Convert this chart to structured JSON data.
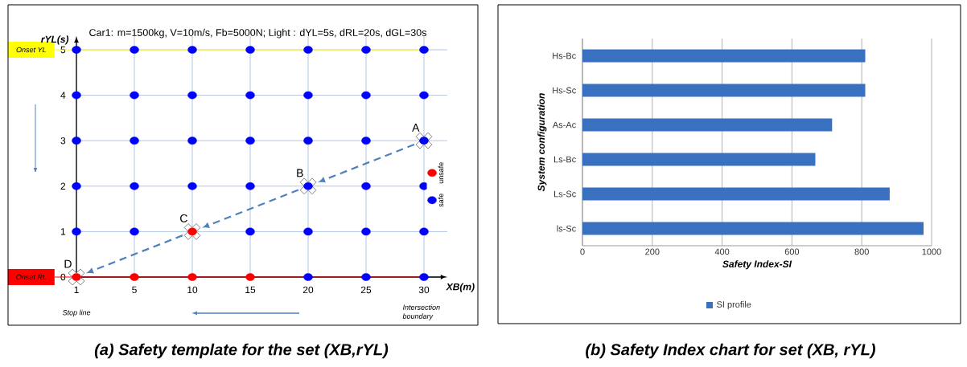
{
  "chart_data": [
    {
      "type": "scatter",
      "title": "(a) Safety template for the set (XB,rYL)",
      "subtitle": "Car1: m=1500kg, V=10m/s, Fb=5000N; Light : dYL=5s, dRL=20s, dGL=30s",
      "xlabel": "XB(m)",
      "ylabel": "rYL(s)",
      "categories": [
        "1",
        "5",
        "10",
        "15",
        "20",
        "25",
        "30"
      ],
      "ylim": [
        0,
        5.3
      ],
      "yticks": [
        0,
        1,
        2,
        3,
        4,
        5
      ],
      "grid": true,
      "marker": "circle",
      "legend": "right",
      "series": [
        {
          "name": "unsafe",
          "color": "#ff0000",
          "x": [
            "1",
            "5",
            "10",
            "15",
            "10"
          ],
          "values": [
            0,
            0,
            0,
            0,
            1
          ]
        },
        {
          "name": "safe",
          "color": "#0000ff",
          "x": [
            "1",
            "5",
            "10",
            "15",
            "20",
            "25",
            "30",
            "1",
            "5",
            "10",
            "15",
            "20",
            "25",
            "30",
            "1",
            "5",
            "10",
            "15",
            "20",
            "25",
            "30",
            "1",
            "5",
            "10",
            "15",
            "20",
            "25",
            "30",
            "1",
            "5",
            "15",
            "20",
            "25",
            "30",
            "20",
            "25",
            "30"
          ],
          "values": [
            5,
            5,
            5,
            5,
            5,
            5,
            5,
            4,
            4,
            4,
            4,
            4,
            4,
            4,
            3,
            3,
            3,
            3,
            3,
            3,
            3,
            2,
            2,
            2,
            2,
            2,
            2,
            2,
            1,
            1,
            1,
            1,
            1,
            1,
            0,
            0,
            0
          ]
        }
      ],
      "ref_lines": [
        {
          "axis": "y",
          "value": 5,
          "label": "Onset YL",
          "color": "#ffff00"
        },
        {
          "axis": "y",
          "value": 0,
          "label": "Onset RL",
          "color": "#ff0000"
        }
      ],
      "annotations": [
        {
          "text": "A",
          "x": "30",
          "y": 3
        },
        {
          "text": "B",
          "x": "20",
          "y": 2
        },
        {
          "text": "C",
          "x": "10",
          "y": 1
        },
        {
          "text": "D",
          "x": "1",
          "y": 0
        },
        "Stop line",
        "Intersection boundary"
      ]
    },
    {
      "type": "bar",
      "orientation": "horizontal",
      "title": "(b) Safety Index chart for set (XB, rYL)",
      "xlabel": "Safety Index-SI",
      "ylabel": "System configuration",
      "categories": [
        "Hs-Bc",
        "Hs-Sc",
        "As-Ac",
        "Ls-Bc",
        "Ls-Sc",
        "ls-Sc"
      ],
      "xlim": [
        0,
        1000
      ],
      "xticks": [
        0,
        200,
        400,
        600,
        800,
        1000
      ],
      "grid": "x",
      "legend": "bottom",
      "series": [
        {
          "name": "SI profile",
          "color": "#3a70c0",
          "values": [
            810,
            810,
            715,
            667,
            880,
            977
          ]
        }
      ]
    }
  ]
}
